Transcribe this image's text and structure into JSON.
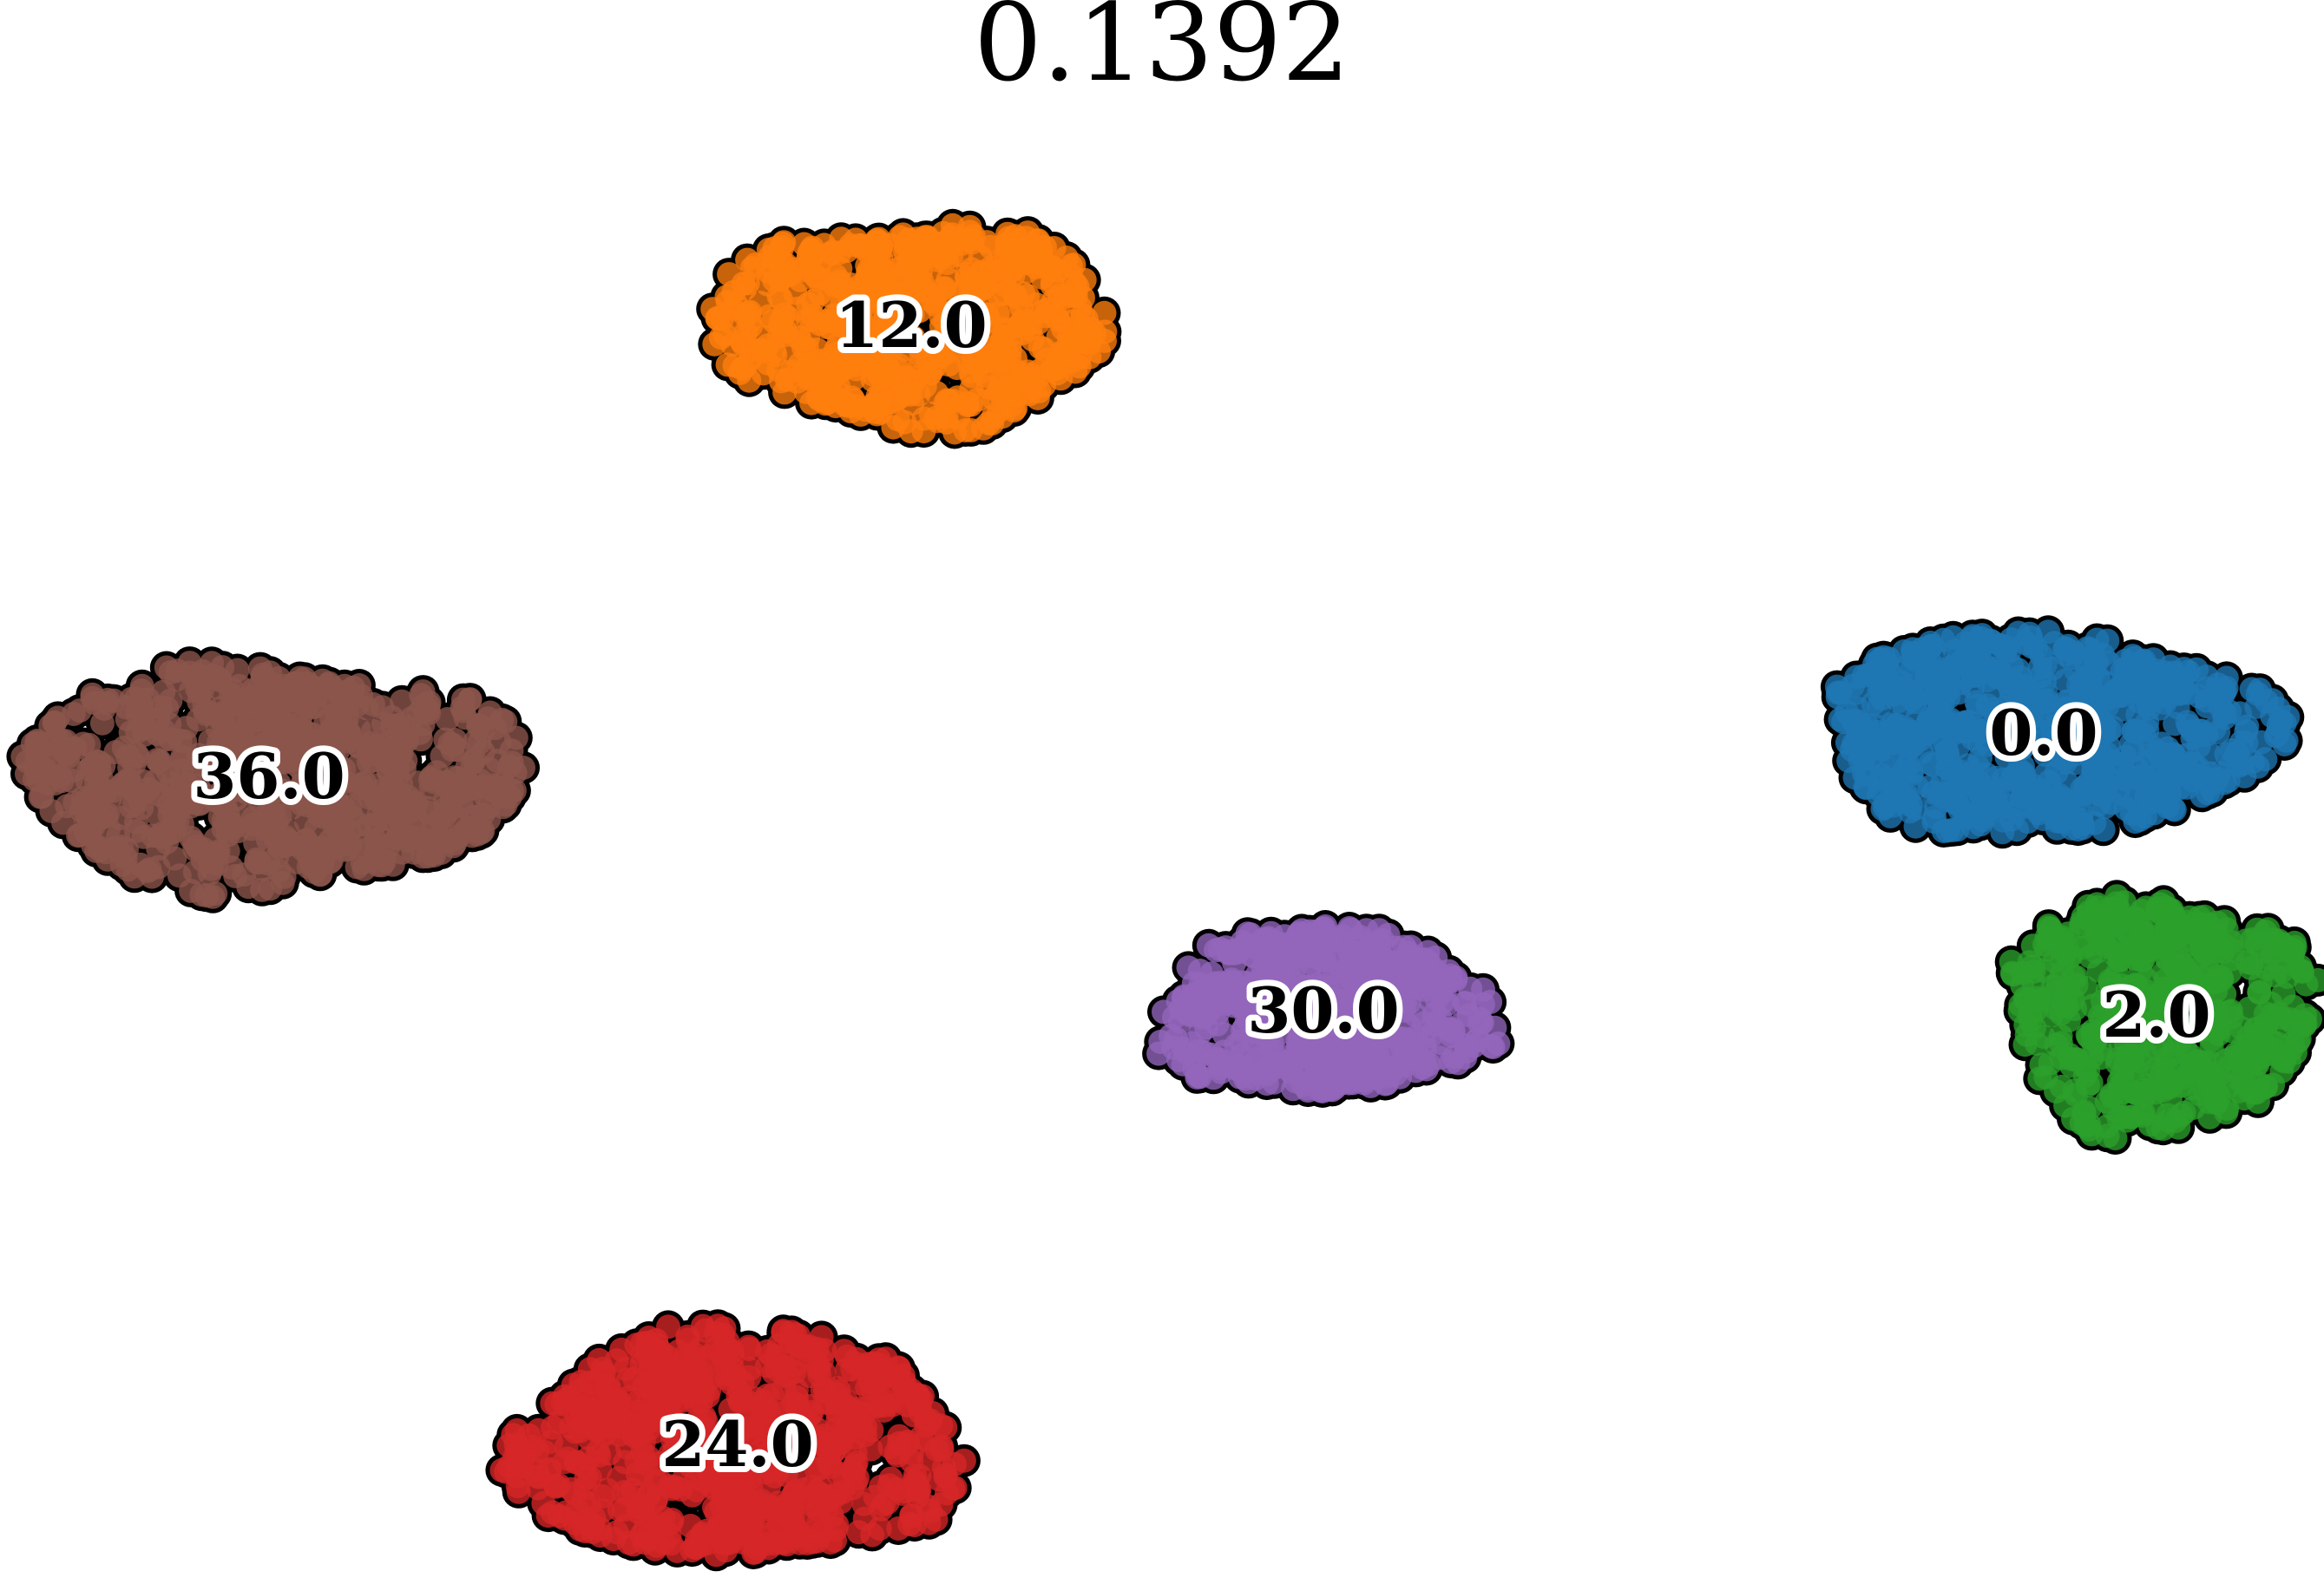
{
  "chart_data": {
    "type": "scatter",
    "title": "0.1392",
    "xlabel": "",
    "ylabel": "",
    "axes_visible": false,
    "grid": false,
    "legend": "none",
    "marker_edge_color": "#000000",
    "clusters": [
      {
        "label": "0.0",
        "color": "#1f77b4",
        "center": [
          2355,
          845
        ],
        "spread": [
          270,
          145
        ],
        "count": 700,
        "seed": 11
      },
      {
        "label": "2.0",
        "color": "#2ca02c",
        "center": [
          2485,
          1170
        ],
        "spread": [
          185,
          170
        ],
        "count": 550,
        "seed": 23
      },
      {
        "label": "12.0",
        "color": "#ff7f0e",
        "center": [
          1050,
          375
        ],
        "spread": [
          240,
          145
        ],
        "count": 650,
        "seed": 37
      },
      {
        "label": "24.0",
        "color": "#d62728",
        "center": [
          850,
          1665
        ],
        "spread": [
          270,
          165
        ],
        "count": 750,
        "seed": 41
      },
      {
        "label": "30.0",
        "color": "#9467bd",
        "center": [
          1525,
          1165
        ],
        "spread": [
          205,
          120
        ],
        "count": 550,
        "seed": 53
      },
      {
        "label": "36.0",
        "color": "#8c564b",
        "center": [
          310,
          895
        ],
        "spread": [
          300,
          160
        ],
        "count": 800,
        "seed": 67
      }
    ]
  }
}
